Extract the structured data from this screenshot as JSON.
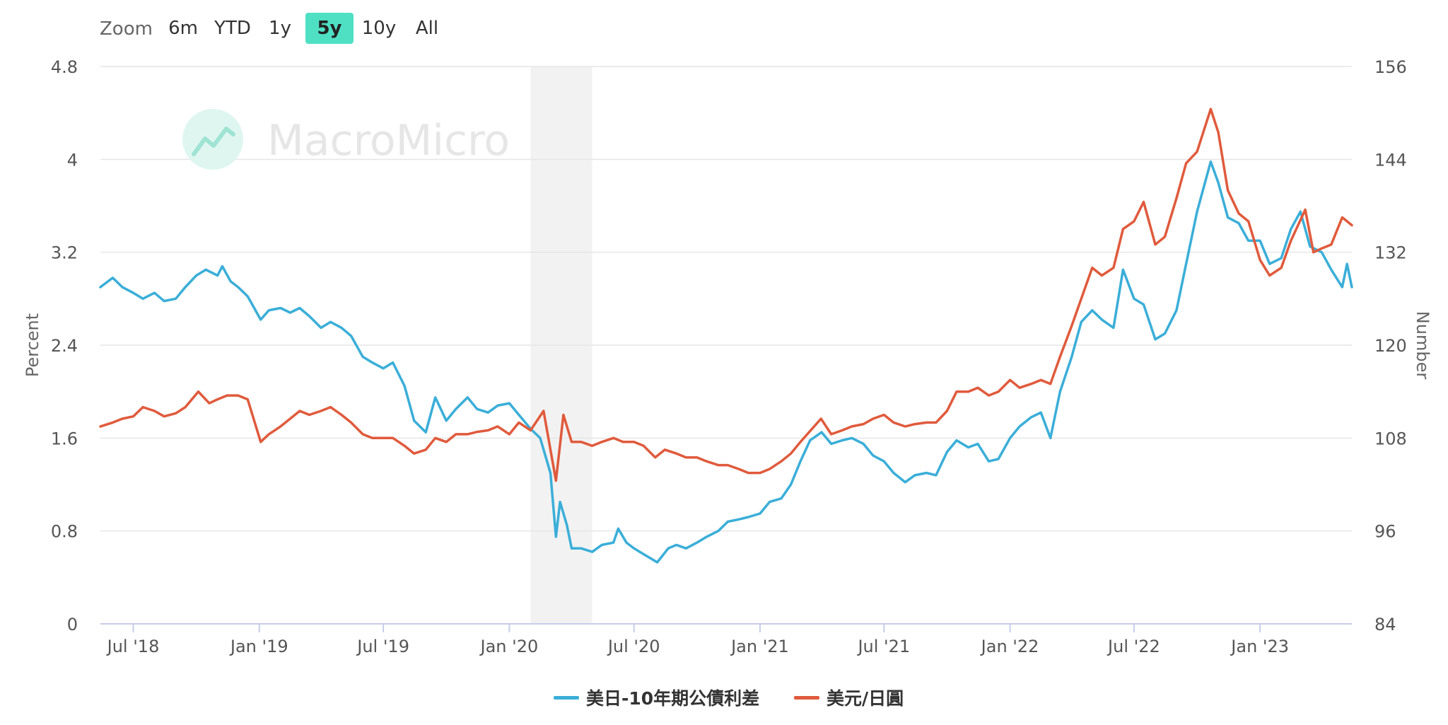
{
  "zoom": {
    "label": "Zoom",
    "buttons": [
      "6m",
      "YTD",
      "1y",
      "5y",
      "10y",
      "All"
    ],
    "active": "5y",
    "active_color": "#4fe0c4"
  },
  "watermark": {
    "text": "MacroMicro",
    "icon": "macromicro-logo-icon"
  },
  "chart_data": {
    "type": "line",
    "title": "",
    "y_left": {
      "label": "Percent",
      "ticks": [
        "0",
        "0.8",
        "1.6",
        "2.4",
        "3.2",
        "4",
        "4.8"
      ],
      "range": [
        0,
        4.8
      ]
    },
    "y_right": {
      "label": "Number",
      "ticks": [
        "84",
        "96",
        "108",
        "120",
        "132",
        "144",
        "156"
      ],
      "range": [
        84,
        156
      ]
    },
    "x_ticks": [
      "Jul '18",
      "Jan '19",
      "Jul '19",
      "Jan '20",
      "Jul '20",
      "Jan '21",
      "Jul '21",
      "Jan '22",
      "Jul '22",
      "Jan '23"
    ],
    "x_range": [
      "2018-05-14",
      "2023-05-15"
    ],
    "shaded_region": {
      "start": "2020-02-01",
      "end": "2020-05-01",
      "color": "#f2f2f2"
    },
    "grid": true,
    "legend_position": "bottom-center",
    "series": [
      {
        "name": "美日-10年期公債利差",
        "color": "#3aaed8",
        "axis": "left",
        "points": [
          [
            "2018-05-14",
            2.9
          ],
          [
            "2018-06-01",
            2.98
          ],
          [
            "2018-06-15",
            2.9
          ],
          [
            "2018-07-01",
            2.85
          ],
          [
            "2018-07-15",
            2.8
          ],
          [
            "2018-08-01",
            2.85
          ],
          [
            "2018-08-15",
            2.78
          ],
          [
            "2018-09-01",
            2.8
          ],
          [
            "2018-09-15",
            2.9
          ],
          [
            "2018-10-01",
            3.0
          ],
          [
            "2018-10-15",
            3.05
          ],
          [
            "2018-11-01",
            3.0
          ],
          [
            "2018-11-08",
            3.08
          ],
          [
            "2018-11-20",
            2.95
          ],
          [
            "2018-12-01",
            2.9
          ],
          [
            "2018-12-15",
            2.82
          ],
          [
            "2019-01-03",
            2.62
          ],
          [
            "2019-01-15",
            2.7
          ],
          [
            "2019-02-01",
            2.72
          ],
          [
            "2019-02-15",
            2.68
          ],
          [
            "2019-03-01",
            2.72
          ],
          [
            "2019-03-15",
            2.65
          ],
          [
            "2019-04-01",
            2.55
          ],
          [
            "2019-04-15",
            2.6
          ],
          [
            "2019-05-01",
            2.55
          ],
          [
            "2019-05-15",
            2.48
          ],
          [
            "2019-06-01",
            2.3
          ],
          [
            "2019-06-15",
            2.25
          ],
          [
            "2019-07-01",
            2.2
          ],
          [
            "2019-07-15",
            2.25
          ],
          [
            "2019-08-01",
            2.05
          ],
          [
            "2019-08-15",
            1.75
          ],
          [
            "2019-09-01",
            1.65
          ],
          [
            "2019-09-15",
            1.95
          ],
          [
            "2019-10-01",
            1.75
          ],
          [
            "2019-10-15",
            1.85
          ],
          [
            "2019-11-01",
            1.95
          ],
          [
            "2019-11-15",
            1.85
          ],
          [
            "2019-12-01",
            1.82
          ],
          [
            "2019-12-15",
            1.88
          ],
          [
            "2020-01-01",
            1.9
          ],
          [
            "2020-01-15",
            1.8
          ],
          [
            "2020-02-01",
            1.68
          ],
          [
            "2020-02-15",
            1.6
          ],
          [
            "2020-03-01",
            1.3
          ],
          [
            "2020-03-09",
            0.75
          ],
          [
            "2020-03-15",
            1.05
          ],
          [
            "2020-03-25",
            0.85
          ],
          [
            "2020-04-01",
            0.65
          ],
          [
            "2020-04-15",
            0.65
          ],
          [
            "2020-05-01",
            0.62
          ],
          [
            "2020-05-15",
            0.68
          ],
          [
            "2020-06-01",
            0.7
          ],
          [
            "2020-06-08",
            0.82
          ],
          [
            "2020-06-20",
            0.7
          ],
          [
            "2020-07-01",
            0.65
          ],
          [
            "2020-07-15",
            0.6
          ],
          [
            "2020-08-04",
            0.53
          ],
          [
            "2020-08-20",
            0.65
          ],
          [
            "2020-09-01",
            0.68
          ],
          [
            "2020-09-15",
            0.65
          ],
          [
            "2020-10-01",
            0.7
          ],
          [
            "2020-10-15",
            0.75
          ],
          [
            "2020-11-01",
            0.8
          ],
          [
            "2020-11-15",
            0.88
          ],
          [
            "2020-12-01",
            0.9
          ],
          [
            "2020-12-15",
            0.92
          ],
          [
            "2021-01-01",
            0.95
          ],
          [
            "2021-01-15",
            1.05
          ],
          [
            "2021-02-01",
            1.08
          ],
          [
            "2021-02-15",
            1.2
          ],
          [
            "2021-03-01",
            1.4
          ],
          [
            "2021-03-15",
            1.58
          ],
          [
            "2021-04-01",
            1.65
          ],
          [
            "2021-04-15",
            1.55
          ],
          [
            "2021-05-01",
            1.58
          ],
          [
            "2021-05-15",
            1.6
          ],
          [
            "2021-06-01",
            1.55
          ],
          [
            "2021-06-15",
            1.45
          ],
          [
            "2021-07-01",
            1.4
          ],
          [
            "2021-07-15",
            1.3
          ],
          [
            "2021-08-01",
            1.22
          ],
          [
            "2021-08-15",
            1.28
          ],
          [
            "2021-09-01",
            1.3
          ],
          [
            "2021-09-15",
            1.28
          ],
          [
            "2021-10-01",
            1.48
          ],
          [
            "2021-10-15",
            1.58
          ],
          [
            "2021-11-01",
            1.52
          ],
          [
            "2021-11-15",
            1.55
          ],
          [
            "2021-12-01",
            1.4
          ],
          [
            "2021-12-15",
            1.42
          ],
          [
            "2022-01-01",
            1.6
          ],
          [
            "2022-01-15",
            1.7
          ],
          [
            "2022-02-01",
            1.78
          ],
          [
            "2022-02-15",
            1.82
          ],
          [
            "2022-03-01",
            1.6
          ],
          [
            "2022-03-15",
            2.0
          ],
          [
            "2022-04-01",
            2.3
          ],
          [
            "2022-04-15",
            2.6
          ],
          [
            "2022-05-01",
            2.7
          ],
          [
            "2022-05-15",
            2.62
          ],
          [
            "2022-06-01",
            2.55
          ],
          [
            "2022-06-15",
            3.05
          ],
          [
            "2022-07-01",
            2.8
          ],
          [
            "2022-07-15",
            2.75
          ],
          [
            "2022-08-01",
            2.45
          ],
          [
            "2022-08-15",
            2.5
          ],
          [
            "2022-09-01",
            2.7
          ],
          [
            "2022-09-15",
            3.1
          ],
          [
            "2022-10-01",
            3.55
          ],
          [
            "2022-10-21",
            3.98
          ],
          [
            "2022-11-01",
            3.8
          ],
          [
            "2022-11-15",
            3.5
          ],
          [
            "2022-12-01",
            3.45
          ],
          [
            "2022-12-15",
            3.3
          ],
          [
            "2023-01-01",
            3.3
          ],
          [
            "2023-01-15",
            3.1
          ],
          [
            "2023-02-01",
            3.15
          ],
          [
            "2023-02-15",
            3.4
          ],
          [
            "2023-03-01",
            3.55
          ],
          [
            "2023-03-15",
            3.25
          ],
          [
            "2023-04-01",
            3.2
          ],
          [
            "2023-04-15",
            3.05
          ],
          [
            "2023-05-01",
            2.9
          ],
          [
            "2023-05-08",
            3.1
          ],
          [
            "2023-05-15",
            2.9
          ]
        ]
      },
      {
        "name": "美元/日圓",
        "color": "#e05a3c",
        "axis": "right",
        "points": [
          [
            "2018-05-14",
            109.5
          ],
          [
            "2018-06-01",
            110.0
          ],
          [
            "2018-06-15",
            110.5
          ],
          [
            "2018-07-01",
            110.8
          ],
          [
            "2018-07-15",
            112.0
          ],
          [
            "2018-08-01",
            111.5
          ],
          [
            "2018-08-15",
            110.8
          ],
          [
            "2018-09-01",
            111.2
          ],
          [
            "2018-09-15",
            112.0
          ],
          [
            "2018-10-04",
            114.0
          ],
          [
            "2018-10-20",
            112.5
          ],
          [
            "2018-11-01",
            113.0
          ],
          [
            "2018-11-15",
            113.5
          ],
          [
            "2018-12-01",
            113.5
          ],
          [
            "2018-12-15",
            113.0
          ],
          [
            "2019-01-03",
            107.5
          ],
          [
            "2019-01-15",
            108.5
          ],
          [
            "2019-02-01",
            109.5
          ],
          [
            "2019-02-15",
            110.5
          ],
          [
            "2019-03-01",
            111.5
          ],
          [
            "2019-03-15",
            111.0
          ],
          [
            "2019-04-01",
            111.5
          ],
          [
            "2019-04-15",
            112.0
          ],
          [
            "2019-05-01",
            111.0
          ],
          [
            "2019-05-15",
            110.0
          ],
          [
            "2019-06-01",
            108.5
          ],
          [
            "2019-06-15",
            108.0
          ],
          [
            "2019-07-01",
            108.0
          ],
          [
            "2019-07-15",
            108.0
          ],
          [
            "2019-08-01",
            107.0
          ],
          [
            "2019-08-15",
            106.0
          ],
          [
            "2019-09-01",
            106.5
          ],
          [
            "2019-09-15",
            108.0
          ],
          [
            "2019-10-01",
            107.5
          ],
          [
            "2019-10-15",
            108.5
          ],
          [
            "2019-11-01",
            108.5
          ],
          [
            "2019-11-15",
            108.8
          ],
          [
            "2019-12-01",
            109.0
          ],
          [
            "2019-12-15",
            109.5
          ],
          [
            "2020-01-01",
            108.5
          ],
          [
            "2020-01-15",
            110.0
          ],
          [
            "2020-02-01",
            109.0
          ],
          [
            "2020-02-20",
            111.5
          ],
          [
            "2020-03-09",
            102.5
          ],
          [
            "2020-03-20",
            111.0
          ],
          [
            "2020-04-01",
            107.5
          ],
          [
            "2020-04-15",
            107.5
          ],
          [
            "2020-05-01",
            107.0
          ],
          [
            "2020-05-15",
            107.5
          ],
          [
            "2020-06-01",
            108.0
          ],
          [
            "2020-06-15",
            107.5
          ],
          [
            "2020-07-01",
            107.5
          ],
          [
            "2020-07-15",
            107.0
          ],
          [
            "2020-08-01",
            105.5
          ],
          [
            "2020-08-15",
            106.5
          ],
          [
            "2020-09-01",
            106.0
          ],
          [
            "2020-09-15",
            105.5
          ],
          [
            "2020-10-01",
            105.5
          ],
          [
            "2020-10-15",
            105.0
          ],
          [
            "2020-11-01",
            104.5
          ],
          [
            "2020-11-15",
            104.5
          ],
          [
            "2020-12-01",
            104.0
          ],
          [
            "2020-12-15",
            103.5
          ],
          [
            "2021-01-01",
            103.5
          ],
          [
            "2021-01-15",
            104.0
          ],
          [
            "2021-02-01",
            105.0
          ],
          [
            "2021-02-15",
            106.0
          ],
          [
            "2021-03-01",
            107.5
          ],
          [
            "2021-03-31",
            110.5
          ],
          [
            "2021-04-15",
            108.5
          ],
          [
            "2021-05-01",
            109.0
          ],
          [
            "2021-05-15",
            109.5
          ],
          [
            "2021-06-01",
            109.8
          ],
          [
            "2021-06-15",
            110.5
          ],
          [
            "2021-07-01",
            111.0
          ],
          [
            "2021-07-15",
            110.0
          ],
          [
            "2021-08-01",
            109.5
          ],
          [
            "2021-08-15",
            109.8
          ],
          [
            "2021-09-01",
            110.0
          ],
          [
            "2021-09-15",
            110.0
          ],
          [
            "2021-10-01",
            111.5
          ],
          [
            "2021-10-15",
            114.0
          ],
          [
            "2021-11-01",
            114.0
          ],
          [
            "2021-11-15",
            114.5
          ],
          [
            "2021-12-01",
            113.5
          ],
          [
            "2021-12-15",
            114.0
          ],
          [
            "2022-01-01",
            115.5
          ],
          [
            "2022-01-15",
            114.5
          ],
          [
            "2022-02-01",
            115.0
          ],
          [
            "2022-02-15",
            115.5
          ],
          [
            "2022-03-01",
            115.0
          ],
          [
            "2022-03-15",
            118.5
          ],
          [
            "2022-04-01",
            122.5
          ],
          [
            "2022-04-15",
            126.0
          ],
          [
            "2022-05-01",
            130.0
          ],
          [
            "2022-05-15",
            129.0
          ],
          [
            "2022-06-01",
            130.0
          ],
          [
            "2022-06-15",
            135.0
          ],
          [
            "2022-07-01",
            136.0
          ],
          [
            "2022-07-15",
            138.5
          ],
          [
            "2022-08-01",
            133.0
          ],
          [
            "2022-08-15",
            134.0
          ],
          [
            "2022-09-01",
            139.0
          ],
          [
            "2022-09-15",
            143.5
          ],
          [
            "2022-10-01",
            145.0
          ],
          [
            "2022-10-21",
            150.5
          ],
          [
            "2022-11-01",
            147.5
          ],
          [
            "2022-11-15",
            140.0
          ],
          [
            "2022-12-01",
            137.0
          ],
          [
            "2022-12-15",
            136.0
          ],
          [
            "2023-01-01",
            131.0
          ],
          [
            "2023-01-15",
            129.0
          ],
          [
            "2023-02-01",
            130.0
          ],
          [
            "2023-02-15",
            133.5
          ],
          [
            "2023-03-08",
            137.5
          ],
          [
            "2023-03-20",
            132.0
          ],
          [
            "2023-04-01",
            132.5
          ],
          [
            "2023-04-15",
            133.0
          ],
          [
            "2023-05-01",
            136.5
          ],
          [
            "2023-05-15",
            135.5
          ]
        ]
      }
    ]
  }
}
